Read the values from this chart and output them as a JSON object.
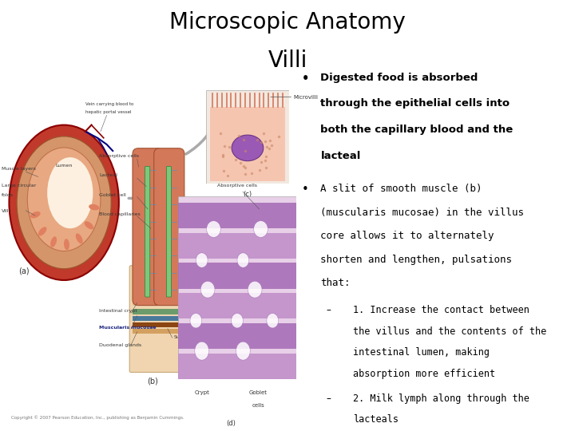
{
  "title_line1": "Microscopic Anatomy",
  "title_line2": "Villi",
  "title_fontsize": 20,
  "title_color": "#000000",
  "bg_color": "#ffffff",
  "b1_lines": [
    "Digested food is absorbed",
    "through the epithelial cells into",
    "both the capillary blood and the",
    "lacteal"
  ],
  "b2_lines": [
    "A slit of smooth muscle (b)",
    "(muscularis mucosae) in the villus",
    "core allows it to alternately",
    "shorten and lengthen, pulsations",
    "that:"
  ],
  "sub1_lines": [
    "1. Increase the contact between",
    "the villus and the contents of the",
    "intestinal lumen, making",
    "absorption more efficient"
  ],
  "sub2_lines": [
    "2. Milk lymph along through the",
    "lacteals"
  ],
  "text_color": "#000000",
  "bullet_fontsize": 9.5,
  "sub_fontsize": 8.5,
  "copyright": "Copyright © 2007 Pearson Education, Inc., publishing as Benjamin Cummings."
}
